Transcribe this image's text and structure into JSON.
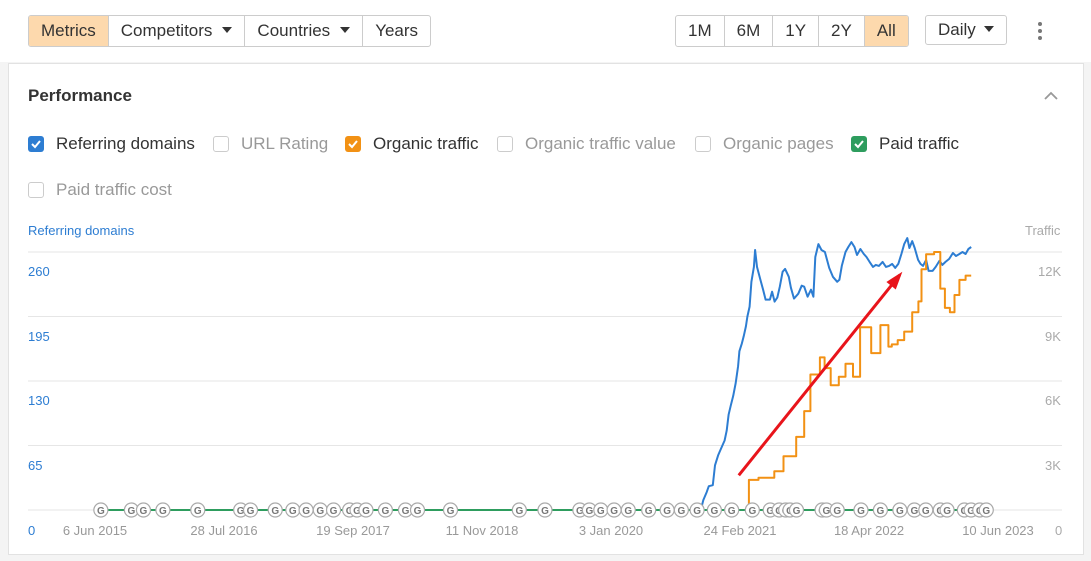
{
  "toolbar": {
    "left_tabs": [
      {
        "label": "Metrics",
        "active": true
      },
      {
        "label": "Competitors",
        "dropdown": true
      },
      {
        "label": "Countries",
        "dropdown": true
      },
      {
        "label": "Years"
      }
    ],
    "ranges": [
      {
        "label": "1M"
      },
      {
        "label": "6M"
      },
      {
        "label": "1Y"
      },
      {
        "label": "2Y"
      },
      {
        "label": "All",
        "active": true
      }
    ],
    "interval": "Daily",
    "more_icon": "kebab-menu-icon"
  },
  "panel": {
    "title": "Performance",
    "collapse_icon": "chevron-up-icon",
    "checkboxes": [
      {
        "label": "Referring domains",
        "checked": true,
        "color": "#2d7dd2"
      },
      {
        "label": "URL Rating",
        "checked": false
      },
      {
        "label": "Organic traffic",
        "checked": true,
        "color": "#f29114"
      },
      {
        "label": "Organic traffic value",
        "checked": false
      },
      {
        "label": "Organic pages",
        "checked": false
      },
      {
        "label": "Paid traffic",
        "checked": true,
        "color": "#2e9d5e"
      },
      {
        "label": "Paid traffic cost",
        "checked": false
      }
    ]
  },
  "colors": {
    "accent_active": "#fdd9ad",
    "referring_domains": "#2d7dd2",
    "organic_traffic": "#f29114",
    "paid_traffic": "#2e9d5e",
    "annotation_arrow": "#e8141b"
  },
  "chart_data": {
    "type": "line",
    "left_axis_title": "Referring domains",
    "right_axis_title": "Traffic",
    "left_ticks": [
      "0",
      "65",
      "130",
      "195",
      "260"
    ],
    "right_ticks": [
      "0",
      "3K",
      "6K",
      "9K",
      "12K"
    ],
    "ylim_left": [
      0,
      260
    ],
    "ylim_right": [
      0,
      12000
    ],
    "x_ticks": [
      "6 Jun 2015",
      "28 Jul 2016",
      "19 Sep 2017",
      "11 Nov 2018",
      "3 Jan 2020",
      "24 Feb 2021",
      "18 Apr 2022",
      "10 Jun 2023"
    ],
    "xlim": [
      "2015-06-06",
      "2023-06-10"
    ],
    "grid": true,
    "annotation": "red arrow pointing up-right (growth trend)",
    "google_update_marker": "G",
    "google_updates": [
      "2015-06-25",
      "2015-10-02",
      "2015-11-10",
      "2016-01-12",
      "2016-05-04",
      "2016-09-20",
      "2016-10-22",
      "2017-01-10",
      "2017-03-08",
      "2017-04-20",
      "2017-06-05",
      "2017-07-18",
      "2017-09-08",
      "2017-10-02",
      "2017-10-31",
      "2018-01-02",
      "2018-03-08",
      "2018-04-16",
      "2018-08-01",
      "2019-03-12",
      "2019-06-03",
      "2019-09-24",
      "2019-10-25",
      "2019-12-01",
      "2020-01-13",
      "2020-02-28",
      "2020-05-04",
      "2020-07-03",
      "2020-08-18",
      "2020-10-08",
      "2020-12-03",
      "2021-01-28",
      "2021-04-05",
      "2021-06-02",
      "2021-07-01",
      "2021-07-22",
      "2021-08-05",
      "2021-08-26",
      "2021-11-17",
      "2021-12-01",
      "2022-01-05",
      "2022-03-23",
      "2022-05-25",
      "2022-07-27",
      "2022-09-12",
      "2022-10-19",
      "2022-12-05",
      "2022-12-27",
      "2023-02-21",
      "2023-03-15",
      "2023-04-12",
      "2023-05-03"
    ],
    "series": [
      {
        "name": "Referring domains",
        "axis": "left",
        "color": "#2d7dd2",
        "points": [
          [
            "2020-10-20",
            0
          ],
          [
            "2020-10-28",
            10
          ],
          [
            "2020-11-08",
            18
          ],
          [
            "2020-11-15",
            24
          ],
          [
            "2020-11-28",
            25
          ],
          [
            "2020-12-05",
            45
          ],
          [
            "2020-12-15",
            55
          ],
          [
            "2020-12-22",
            60
          ],
          [
            "2021-01-05",
            70
          ],
          [
            "2021-01-12",
            80
          ],
          [
            "2021-01-18",
            96
          ],
          [
            "2021-01-25",
            105
          ],
          [
            "2021-02-02",
            115
          ],
          [
            "2021-02-10",
            128
          ],
          [
            "2021-02-18",
            145
          ],
          [
            "2021-02-22",
            160
          ],
          [
            "2021-03-02",
            168
          ],
          [
            "2021-03-08",
            175
          ],
          [
            "2021-03-15",
            185
          ],
          [
            "2021-03-20",
            195
          ],
          [
            "2021-03-27",
            205
          ],
          [
            "2021-04-02",
            230
          ],
          [
            "2021-04-10",
            245
          ],
          [
            "2021-04-14",
            262
          ],
          [
            "2021-04-20",
            245
          ],
          [
            "2021-05-01",
            232
          ],
          [
            "2021-05-10",
            222
          ],
          [
            "2021-05-18",
            212
          ],
          [
            "2021-06-01",
            212
          ],
          [
            "2021-06-08",
            220
          ],
          [
            "2021-06-16",
            210
          ],
          [
            "2021-06-25",
            214
          ],
          [
            "2021-07-03",
            225
          ],
          [
            "2021-07-12",
            240
          ],
          [
            "2021-07-20",
            243
          ],
          [
            "2021-08-01",
            235
          ],
          [
            "2021-08-08",
            224
          ],
          [
            "2021-08-18",
            213
          ],
          [
            "2021-09-01",
            218
          ],
          [
            "2021-09-12",
            226
          ],
          [
            "2021-09-20",
            225
          ],
          [
            "2021-10-01",
            215
          ],
          [
            "2021-10-12",
            222
          ],
          [
            "2021-10-20",
            215
          ],
          [
            "2021-10-26",
            255
          ],
          [
            "2021-11-05",
            268
          ],
          [
            "2021-11-15",
            262
          ],
          [
            "2021-11-26",
            260
          ],
          [
            "2021-12-10",
            244
          ],
          [
            "2021-12-22",
            235
          ],
          [
            "2022-01-05",
            230
          ],
          [
            "2022-01-12",
            232
          ],
          [
            "2022-01-20",
            246
          ],
          [
            "2022-02-01",
            260
          ],
          [
            "2022-02-10",
            265
          ],
          [
            "2022-02-20",
            270
          ],
          [
            "2022-03-02",
            265
          ],
          [
            "2022-03-10",
            257
          ],
          [
            "2022-03-21",
            263
          ],
          [
            "2022-04-01",
            258
          ],
          [
            "2022-04-10",
            255
          ],
          [
            "2022-04-20",
            250
          ],
          [
            "2022-05-01",
            245
          ],
          [
            "2022-05-10",
            247
          ],
          [
            "2022-05-20",
            246
          ],
          [
            "2022-06-01",
            250
          ],
          [
            "2022-06-12",
            245
          ],
          [
            "2022-06-22",
            246
          ],
          [
            "2022-07-02",
            248
          ],
          [
            "2022-07-12",
            244
          ],
          [
            "2022-07-22",
            248
          ],
          [
            "2022-08-01",
            258
          ],
          [
            "2022-08-10",
            268
          ],
          [
            "2022-08-20",
            274
          ],
          [
            "2022-08-27",
            264
          ],
          [
            "2022-09-05",
            271
          ],
          [
            "2022-09-13",
            264
          ],
          [
            "2022-09-24",
            252
          ],
          [
            "2022-10-02",
            248
          ],
          [
            "2022-10-10",
            246
          ],
          [
            "2022-10-20",
            252
          ],
          [
            "2022-10-28",
            241
          ],
          [
            "2022-11-10",
            241
          ],
          [
            "2022-11-20",
            245
          ],
          [
            "2022-12-02",
            251
          ],
          [
            "2022-12-12",
            247
          ],
          [
            "2022-12-22",
            250
          ],
          [
            "2023-01-03",
            253
          ],
          [
            "2023-01-15",
            259
          ],
          [
            "2023-01-25",
            256
          ],
          [
            "2023-02-05",
            258
          ],
          [
            "2023-02-15",
            260
          ],
          [
            "2023-02-25",
            258
          ],
          [
            "2023-03-06",
            263
          ],
          [
            "2023-03-15",
            265
          ]
        ]
      },
      {
        "name": "Organic traffic",
        "axis": "right",
        "color": "#f29114",
        "points": [
          [
            "2021-03-25",
            0
          ],
          [
            "2021-03-25",
            1400
          ],
          [
            "2021-04-25",
            1400
          ],
          [
            "2021-04-25",
            1500
          ],
          [
            "2021-06-15",
            1500
          ],
          [
            "2021-06-15",
            1800
          ],
          [
            "2021-07-15",
            1800
          ],
          [
            "2021-07-15",
            2500
          ],
          [
            "2021-08-25",
            2500
          ],
          [
            "2021-08-25",
            3400
          ],
          [
            "2021-09-20",
            3400
          ],
          [
            "2021-09-20",
            4600
          ],
          [
            "2021-10-10",
            4600
          ],
          [
            "2021-10-10",
            6300
          ],
          [
            "2021-11-10",
            6300
          ],
          [
            "2021-11-10",
            7100
          ],
          [
            "2021-11-25",
            7100
          ],
          [
            "2021-11-25",
            6600
          ],
          [
            "2021-12-15",
            6600
          ],
          [
            "2021-12-15",
            5800
          ],
          [
            "2022-01-10",
            5800
          ],
          [
            "2022-01-10",
            6200
          ],
          [
            "2022-02-01",
            6200
          ],
          [
            "2022-02-01",
            6800
          ],
          [
            "2022-02-25",
            6800
          ],
          [
            "2022-02-25",
            6200
          ],
          [
            "2022-03-20",
            6200
          ],
          [
            "2022-03-20",
            8500
          ],
          [
            "2022-04-25",
            8500
          ],
          [
            "2022-04-25",
            7300
          ],
          [
            "2022-05-25",
            7300
          ],
          [
            "2022-05-25",
            8600
          ],
          [
            "2022-06-20",
            8600
          ],
          [
            "2022-06-20",
            7600
          ],
          [
            "2022-07-01",
            7600
          ],
          [
            "2022-07-01",
            7700
          ],
          [
            "2022-07-20",
            7700
          ],
          [
            "2022-07-20",
            7900
          ],
          [
            "2022-08-10",
            7900
          ],
          [
            "2022-08-10",
            8300
          ],
          [
            "2022-09-05",
            8300
          ],
          [
            "2022-09-05",
            9200
          ],
          [
            "2022-09-25",
            9200
          ],
          [
            "2022-09-25",
            9700
          ],
          [
            "2022-10-05",
            9700
          ],
          [
            "2022-10-05",
            11200
          ],
          [
            "2022-10-20",
            11200
          ],
          [
            "2022-10-20",
            11900
          ],
          [
            "2022-11-15",
            11900
          ],
          [
            "2022-11-15",
            12000
          ],
          [
            "2022-12-05",
            12000
          ],
          [
            "2022-12-05",
            10300
          ],
          [
            "2022-12-20",
            10300
          ],
          [
            "2022-12-20",
            9400
          ],
          [
            "2023-01-05",
            9400
          ],
          [
            "2023-01-05",
            9200
          ],
          [
            "2023-01-20",
            9200
          ],
          [
            "2023-01-20",
            10000
          ],
          [
            "2023-02-05",
            10000
          ],
          [
            "2023-02-05",
            10700
          ],
          [
            "2023-02-25",
            10700
          ],
          [
            "2023-02-25",
            10900
          ],
          [
            "2023-03-15",
            10900
          ]
        ]
      },
      {
        "name": "Paid traffic",
        "axis": "right",
        "color": "#2e9d5e",
        "points": [
          [
            "2015-06-06",
            0
          ],
          [
            "2023-03-15",
            0
          ]
        ]
      }
    ]
  }
}
